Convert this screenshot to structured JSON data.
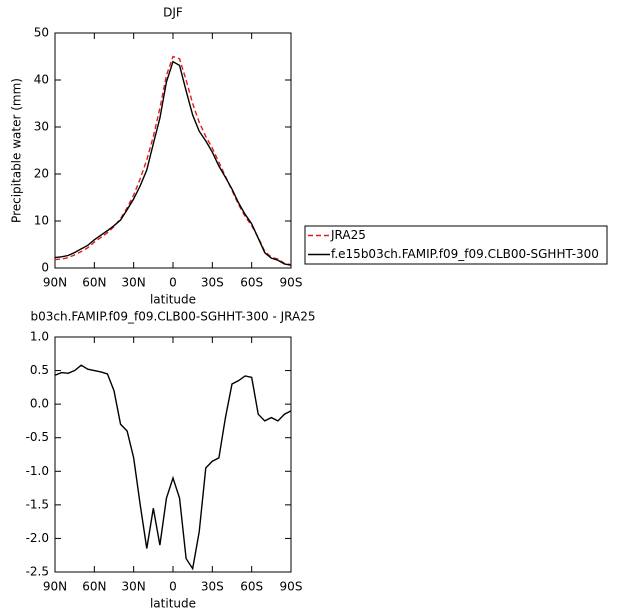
{
  "chart_data": [
    {
      "type": "line",
      "title": "DJF",
      "x_label": "latitude",
      "y_label": "Precipitable water (mm)",
      "x": [
        90,
        85,
        80,
        75,
        70,
        65,
        60,
        55,
        50,
        45,
        40,
        35,
        30,
        25,
        20,
        15,
        10,
        5,
        0,
        -5,
        -10,
        -15,
        -20,
        -25,
        -30,
        -35,
        -40,
        -45,
        -50,
        -55,
        -60,
        -65,
        -70,
        -75,
        -80,
        -85,
        -90
      ],
      "series": [
        {
          "name": "JRA25",
          "color": "#e41a1c",
          "dash": true,
          "values": [
            1.8,
            1.9,
            2.2,
            2.8,
            3.5,
            4.3,
            5.5,
            6.5,
            7.5,
            8.8,
            10.5,
            12.8,
            15.5,
            19,
            23,
            28,
            34,
            41,
            45,
            44.5,
            40,
            35,
            31,
            28,
            25.5,
            22.5,
            19.5,
            16.5,
            13.5,
            11,
            9,
            6.5,
            3.5,
            2.3,
            1.9,
            1.0,
            0.7
          ]
        },
        {
          "name": "f.e15b03ch.FAMIP.f09_f09.CLB00-SGHHT-300",
          "color": "#000000",
          "dash": false,
          "values": [
            2.23,
            2.37,
            2.66,
            3.3,
            4.08,
            4.82,
            6.0,
            6.98,
            7.95,
            9.0,
            10.2,
            12.4,
            14.7,
            17.5,
            20.85,
            26.45,
            31.9,
            39.6,
            43.9,
            43.1,
            37.7,
            32.55,
            29.1,
            27.05,
            24.65,
            21.7,
            19.3,
            16.8,
            13.85,
            11.42,
            9.4,
            6.35,
            3.25,
            2.1,
            1.65,
            0.85,
            0.6
          ]
        }
      ],
      "xlim": [
        90,
        -90
      ],
      "xticks": [
        {
          "value": 90,
          "label": "90N"
        },
        {
          "value": 60,
          "label": "60N"
        },
        {
          "value": 30,
          "label": "30N"
        },
        0,
        {
          "value": -30,
          "label": "30S"
        },
        {
          "value": -60,
          "label": "60S"
        },
        {
          "value": -90,
          "label": "90S"
        }
      ],
      "ylim": [
        0,
        50
      ],
      "yticks": [
        0,
        10,
        20,
        30,
        40,
        50
      ],
      "legend": "outside-right"
    },
    {
      "type": "line",
      "title": "b03ch.FAMIP.f09_f09.CLB00-SGHHT-300 - JRA25",
      "x_label": "latitude",
      "x": [
        90,
        85,
        80,
        75,
        70,
        65,
        60,
        55,
        50,
        45,
        40,
        35,
        30,
        25,
        20,
        15,
        10,
        5,
        0,
        -5,
        -10,
        -15,
        -20,
        -25,
        -30,
        -35,
        -40,
        -45,
        -50,
        -55,
        -60,
        -65,
        -70,
        -75,
        -80,
        -85,
        -90
      ],
      "values": [
        0.43,
        0.47,
        0.46,
        0.5,
        0.58,
        0.52,
        0.5,
        0.48,
        0.45,
        0.2,
        -0.3,
        -0.4,
        -0.8,
        -1.5,
        -2.15,
        -1.55,
        -2.1,
        -1.4,
        -1.1,
        -1.4,
        -2.3,
        -2.45,
        -1.9,
        -0.95,
        -0.85,
        -0.8,
        -0.2,
        0.3,
        0.35,
        0.42,
        0.4,
        -0.15,
        -0.25,
        -0.2,
        -0.25,
        -0.15,
        -0.1
      ],
      "color": "#000000",
      "xlim": [
        90,
        -90
      ],
      "xticks": [
        {
          "value": 90,
          "label": "90N"
        },
        {
          "value": 60,
          "label": "60N"
        },
        {
          "value": 30,
          "label": "30N"
        },
        0,
        {
          "value": -30,
          "label": "30S"
        },
        {
          "value": -60,
          "label": "60S"
        },
        {
          "value": -90,
          "label": "90S"
        }
      ],
      "ylim": [
        -2.5,
        1
      ],
      "yticks": [
        -2.5,
        {
          "value": -2,
          "label": "-2.0"
        },
        -1.5,
        {
          "value": -1,
          "label": "-1.0"
        },
        -0.5,
        {
          "value": 0,
          "label": "0.0"
        },
        0.5,
        {
          "value": 1,
          "label": "1.0"
        }
      ]
    }
  ]
}
